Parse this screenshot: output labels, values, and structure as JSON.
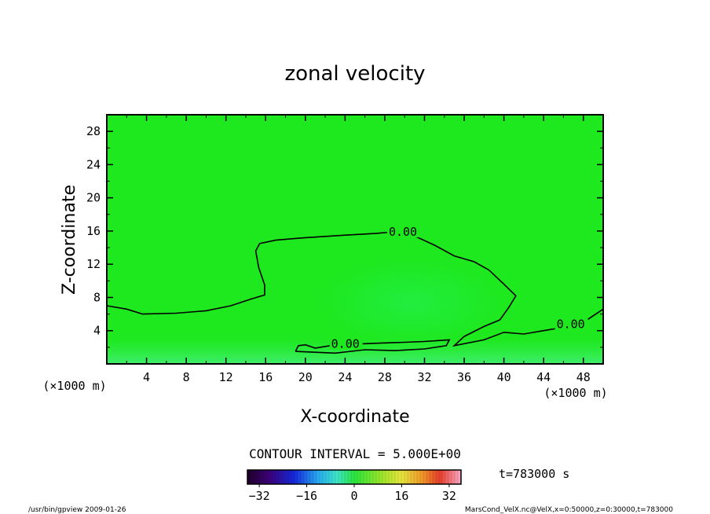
{
  "chart_data": {
    "type": "heatmap",
    "title": "zonal velocity",
    "xlabel": "X-coordinate",
    "ylabel": "Z-coordinate",
    "x_unit": "(×1000 m)",
    "y_unit": "(×1000 m)",
    "xlim": [
      0,
      50
    ],
    "ylim": [
      0,
      30
    ],
    "x_ticks": [
      4,
      8,
      12,
      16,
      20,
      24,
      28,
      32,
      36,
      40,
      44,
      48
    ],
    "y_ticks": [
      4,
      8,
      12,
      16,
      20,
      24,
      28
    ],
    "contour_interval": "CONTOUR INTERVAL = 5.000E+00",
    "time_label": "t=783000 s",
    "colorbar": {
      "ticks": [
        -32,
        -16,
        0,
        16,
        32
      ],
      "range": [
        -36,
        36
      ]
    },
    "contours": [
      {
        "level": 0,
        "label": "0.00",
        "points": [
          [
            0,
            7.0
          ],
          [
            2,
            6.6
          ],
          [
            3.6,
            6.0
          ],
          [
            7,
            6.1
          ],
          [
            10,
            6.4
          ],
          [
            12.5,
            7.0
          ],
          [
            14.5,
            7.8
          ],
          [
            15.9,
            8.3
          ],
          [
            15.9,
            9.5
          ],
          [
            15.3,
            11.6
          ],
          [
            15.0,
            13.6
          ],
          [
            15.4,
            14.5
          ],
          [
            17,
            14.9
          ],
          [
            20,
            15.2
          ],
          [
            24,
            15.5
          ],
          [
            27,
            15.7
          ],
          [
            29,
            15.9
          ],
          [
            31,
            15.4
          ],
          [
            33,
            14.3
          ],
          [
            35,
            13.0
          ],
          [
            37,
            12.3
          ],
          [
            38.5,
            11.3
          ],
          [
            40,
            9.6
          ],
          [
            41.2,
            8.2
          ],
          [
            40.5,
            6.8
          ],
          [
            39.6,
            5.3
          ],
          [
            38,
            4.5
          ],
          [
            36,
            3.3
          ],
          [
            35.0,
            2.2
          ],
          [
            38,
            2.9
          ],
          [
            40,
            3.8
          ],
          [
            42,
            3.6
          ],
          [
            44,
            4.0
          ],
          [
            46,
            4.4
          ],
          [
            48,
            5.0
          ],
          [
            50,
            6.6
          ]
        ],
        "labels_at": [
          [
            28.4,
            15.9
          ],
          [
            45.3,
            4.8
          ]
        ]
      },
      {
        "level": 0,
        "label": "0.00",
        "points": [
          [
            19,
            1.5
          ],
          [
            19.3,
            2.2
          ],
          [
            20,
            2.3
          ],
          [
            21,
            1.9
          ],
          [
            22.5,
            2.2
          ],
          [
            24,
            2.1
          ],
          [
            25.5,
            2.4
          ],
          [
            27.5,
            2.5
          ],
          [
            30,
            2.6
          ],
          [
            32,
            2.7
          ],
          [
            34.5,
            2.9
          ],
          [
            34.2,
            2.2
          ],
          [
            32,
            1.8
          ],
          [
            29,
            1.6
          ],
          [
            26,
            1.7
          ],
          [
            23,
            1.3
          ],
          [
            21,
            1.4
          ],
          [
            19,
            1.5
          ]
        ],
        "labels_at": [
          [
            22.6,
            2.4
          ]
        ]
      }
    ],
    "green_field_note": "field near 0 m/s everywhere; slightly stronger positive (lighter green) around x=28-38, z=4-10"
  },
  "footer": {
    "left": "/usr/bin/gpview   2009-01-26",
    "right": "MarsCond_VelX.nc@VelX,x=0:50000,z=0:30000,t=783000"
  }
}
